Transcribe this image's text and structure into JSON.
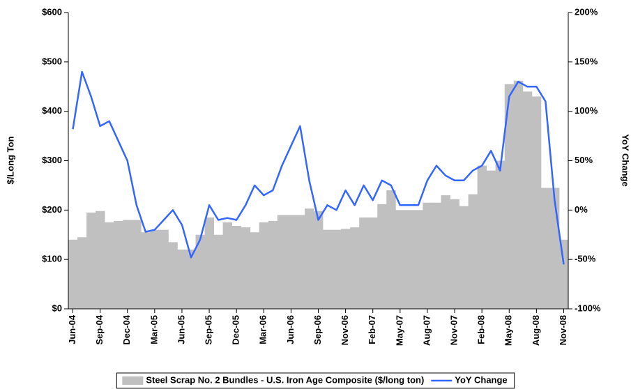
{
  "chart_data": {
    "type": "bar-line",
    "categories": [
      "Jun-04",
      null,
      null,
      "Sep-04",
      null,
      null,
      "Dec-04",
      null,
      null,
      "Mar-05",
      null,
      null,
      "Jun-05",
      null,
      null,
      "Sep-05",
      null,
      null,
      "Dec-05",
      null,
      null,
      "Mar-06",
      null,
      null,
      "Jun-06",
      null,
      null,
      "Sep-06",
      null,
      null,
      "Nov-06",
      null,
      null,
      "Feb-07",
      null,
      null,
      "May-07",
      null,
      null,
      "Aug-07",
      null,
      null,
      "Nov-07",
      null,
      null,
      "Feb-08",
      null,
      null,
      "May-08",
      null,
      null,
      "Aug-08",
      null,
      null,
      "Nov-08"
    ],
    "series": [
      {
        "name": "Steel Scrap No. 2 Bundles - U.S. Iron Age Composite ($/long ton)",
        "color": "#c0c0c0",
        "kind": "bar",
        "values": [
          140,
          145,
          195,
          198,
          175,
          178,
          180,
          180,
          155,
          160,
          160,
          135,
          120,
          120,
          150,
          185,
          150,
          175,
          168,
          165,
          155,
          175,
          178,
          190,
          190,
          190,
          203,
          198,
          160,
          160,
          162,
          165,
          185,
          185,
          212,
          240,
          200,
          200,
          200,
          215,
          215,
          230,
          222,
          208,
          232,
          290,
          280,
          300,
          455,
          462,
          440,
          430,
          245,
          245,
          140
        ]
      },
      {
        "name": "YoY Change",
        "color": "#3366ff",
        "kind": "line",
        "axis": "y2",
        "values": [
          82,
          140,
          115,
          85,
          90,
          70,
          50,
          5,
          -22,
          -20,
          -10,
          0,
          -15,
          -48,
          -30,
          5,
          -10,
          -8,
          -10,
          5,
          25,
          15,
          20,
          45,
          65,
          85,
          30,
          -10,
          5,
          0,
          20,
          5,
          25,
          10,
          30,
          25,
          5,
          5,
          5,
          30,
          45,
          35,
          30,
          30,
          40,
          45,
          60,
          40,
          115,
          130,
          125,
          125,
          110,
          10,
          -55
        ]
      }
    ],
    "ylabel": "$/Long Ton",
    "y2label": "YoY Change",
    "ylim": [
      0,
      600
    ],
    "yticks": [
      {
        "value": 0,
        "label": "$0"
      },
      {
        "value": 100,
        "label": "$100"
      },
      {
        "value": 200,
        "label": "$200"
      },
      {
        "value": 300,
        "label": "$300"
      },
      {
        "value": 400,
        "label": "$400"
      },
      {
        "value": 500,
        "label": "$500"
      },
      {
        "value": 600,
        "label": "$600"
      }
    ],
    "y2lim": [
      -100,
      200
    ],
    "y2ticks": [
      {
        "value": -100,
        "label": "-100%"
      },
      {
        "value": -50,
        "label": "-50%"
      },
      {
        "value": 0,
        "label": "0%"
      },
      {
        "value": 50,
        "label": "50%"
      },
      {
        "value": 100,
        "label": "100%"
      },
      {
        "value": 150,
        "label": "150%"
      },
      {
        "value": 200,
        "label": "200%"
      }
    ],
    "legend": "bottom",
    "grid": false
  }
}
